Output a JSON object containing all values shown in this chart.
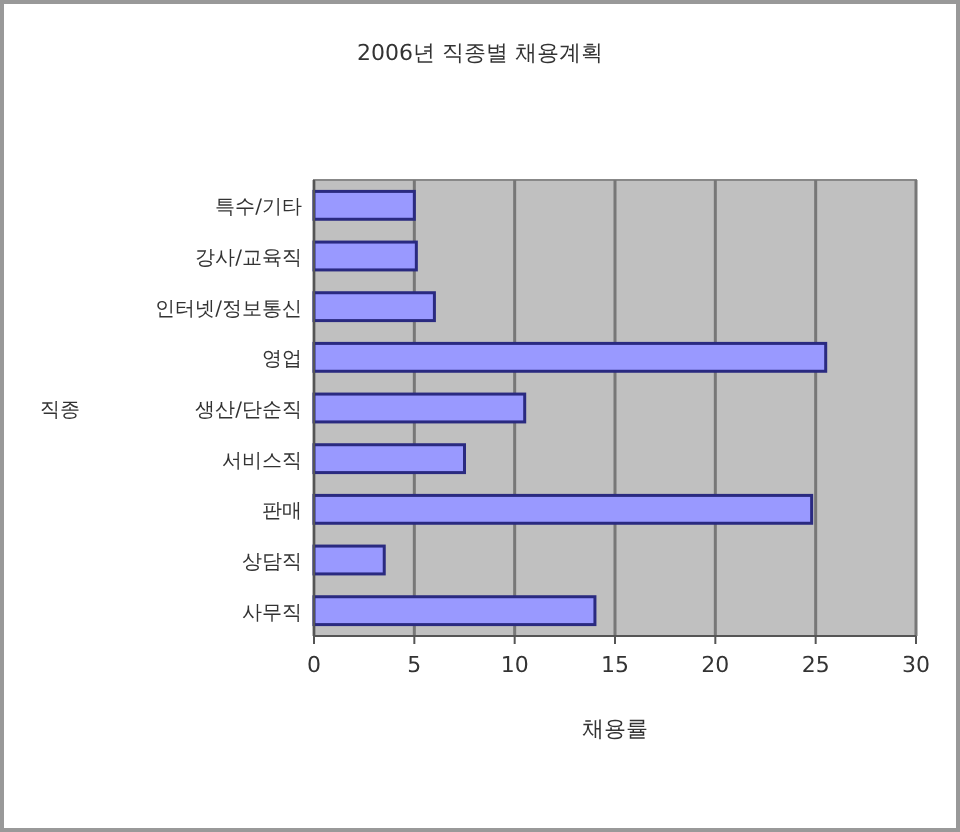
{
  "chart_data": {
    "type": "bar",
    "orientation": "horizontal",
    "title": "2006년 직종별 채용계획",
    "xlabel": "채용률",
    "ylabel": "직종",
    "categories": [
      "특수/기타",
      "강사/교육직",
      "인터넷/정보통신",
      "영업",
      "생산/단순직",
      "서비스직",
      "판매",
      "상담직",
      "사무직"
    ],
    "values": [
      5,
      5.1,
      6,
      25.5,
      10.5,
      7.5,
      24.8,
      3.5,
      14
    ],
    "color": "#9999ff",
    "xlim": [
      0,
      30
    ],
    "xticks": [
      0,
      5,
      10,
      15,
      20,
      25,
      30
    ],
    "grid": "x"
  }
}
